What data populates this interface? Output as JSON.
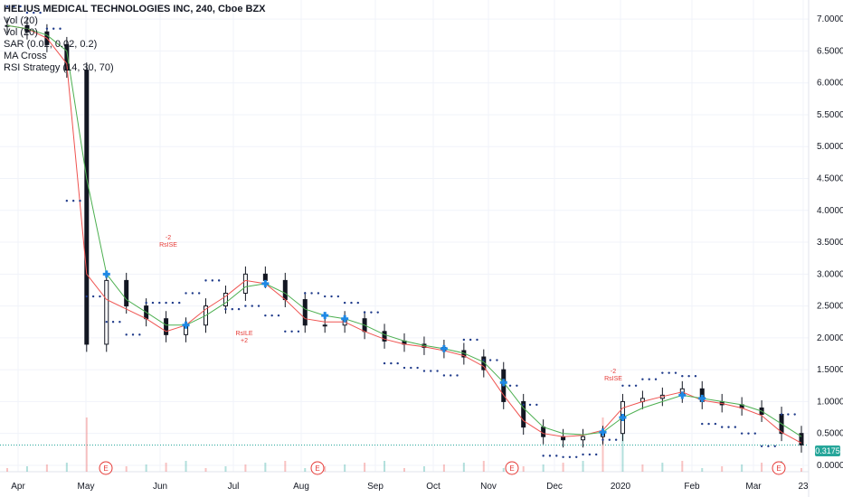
{
  "legend": {
    "title": "HELIUS MEDICAL TECHNOLOGIES INC, 240, Cboe BZX",
    "lines": [
      "Vol (20)",
      "Vol (20)",
      "SAR (0.02, 0.02, 0.2)",
      "MA Cross",
      "RSI Strategy (14, 30, 70)"
    ]
  },
  "colors": {
    "up": "#26a69a",
    "down": "#ef5350",
    "candle": "#131722",
    "fast_ma": "#ef5350",
    "slow_ma": "#4caf50",
    "sar": "#1e3a8a",
    "grid": "#f0f3fa",
    "badge": "#26a69a",
    "marker_up": "#1e88e5",
    "marker_down": "#e53935"
  },
  "price_badge": "0.3175",
  "annotations": [
    {
      "text": "-2",
      "sub": "RsISE",
      "x": "Jun",
      "y": 3.4
    },
    {
      "text": "RsILE",
      "sub": "+2",
      "x": "Jul",
      "y": 1.9
    },
    {
      "text": "-2",
      "sub": "RsISE",
      "x": "Dec",
      "y": 1.3
    }
  ],
  "earnings_label": "E",
  "chart_data": {
    "type": "line",
    "title": "HELIUS MEDICAL TECHNOLOGIES INC, 240, Cboe BZX",
    "xlabel": "",
    "ylabel": "",
    "ylim": [
      -0.1,
      7.3
    ],
    "x_ticks": [
      "Apr",
      "May",
      "Jun",
      "Jul",
      "Aug",
      "Sep",
      "Oct",
      "Nov",
      "Dec",
      "2020",
      "Feb",
      "Mar",
      "23"
    ],
    "y_ticks": [
      "7.0000",
      "6.5000",
      "6.0000",
      "5.5000",
      "5.0000",
      "4.5000",
      "4.0000",
      "3.5000",
      "3.0000",
      "2.5000",
      "2.0000",
      "1.5000",
      "1.0000",
      "0.5000",
      "0.0000"
    ],
    "series": [
      {
        "name": "Price",
        "values": [
          6.9,
          6.8,
          6.6,
          6.2,
          1.9,
          2.9,
          2.5,
          2.3,
          2.05,
          2.2,
          2.5,
          2.7,
          3.0,
          2.9,
          2.6,
          2.2,
          2.2,
          2.3,
          2.1,
          1.95,
          1.9,
          1.85,
          1.8,
          1.7,
          1.5,
          1.0,
          0.6,
          0.45,
          0.4,
          0.45,
          0.5,
          1.0,
          1.05,
          1.1,
          1.2,
          1.0,
          0.95,
          0.9,
          0.8,
          0.5,
          0.32
        ]
      },
      {
        "name": "Fast MA",
        "values": [
          6.9,
          6.85,
          6.7,
          6.3,
          3.0,
          2.6,
          2.45,
          2.3,
          2.1,
          2.2,
          2.45,
          2.65,
          2.9,
          2.85,
          2.6,
          2.3,
          2.25,
          2.25,
          2.1,
          1.98,
          1.9,
          1.86,
          1.8,
          1.72,
          1.55,
          1.1,
          0.7,
          0.5,
          0.45,
          0.47,
          0.55,
          0.9,
          1.0,
          1.08,
          1.15,
          1.02,
          0.97,
          0.9,
          0.78,
          0.52,
          0.35
        ]
      },
      {
        "name": "Slow MA",
        "values": [
          6.9,
          6.85,
          6.75,
          6.5,
          4.5,
          3.0,
          2.6,
          2.4,
          2.2,
          2.2,
          2.35,
          2.55,
          2.8,
          2.85,
          2.7,
          2.45,
          2.35,
          2.3,
          2.2,
          2.05,
          1.95,
          1.88,
          1.83,
          1.76,
          1.62,
          1.3,
          0.9,
          0.6,
          0.5,
          0.48,
          0.52,
          0.75,
          0.9,
          1.0,
          1.1,
          1.05,
          1.0,
          0.95,
          0.85,
          0.65,
          0.45
        ]
      }
    ],
    "earnings_x_index": [
      7,
      16,
      27,
      38
    ],
    "volume_spikes_index": [
      4,
      30,
      31
    ],
    "legend_position": "top-left",
    "grid": true
  }
}
